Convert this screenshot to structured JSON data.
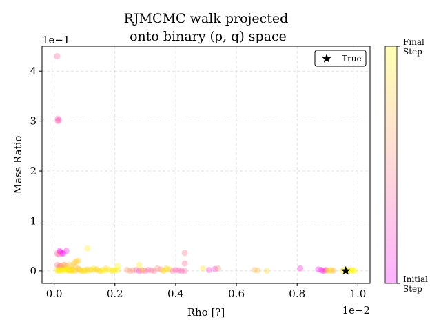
{
  "chart_data": {
    "type": "scatter",
    "title_line1": "RJMCMC walk projected",
    "title_line2": "onto binary (ρ, q) space",
    "xlabel": "Rho [?]",
    "ylabel": "Mass Ratio",
    "x_offset_label": "1e−2",
    "y_offset_label": "1e−1",
    "xlim": [
      -0.04,
      1.04
    ],
    "ylim": [
      -0.25,
      4.5
    ],
    "x_ticks": [
      0.0,
      0.2,
      0.4,
      0.6,
      0.8,
      1.0
    ],
    "x_tick_labels": [
      "0.0",
      "0.2",
      "0.4",
      "0.6",
      "0.8",
      "1.0"
    ],
    "y_ticks": [
      0,
      1,
      2,
      3,
      4
    ],
    "y_tick_labels": [
      "0",
      "1",
      "2",
      "3",
      "4"
    ],
    "grid": true,
    "legend": {
      "position": "top-right",
      "label": "True",
      "marker": "star"
    },
    "colorbar": {
      "top_label": "Final\nStep",
      "bottom_label": "Initial\nStep",
      "colormap": "spring",
      "alpha": 0.3
    },
    "true_point": {
      "x": 0.96,
      "y": 0.0
    },
    "colors": {
      "start": "#ff00ff",
      "end": "#ffff00",
      "star": "#000000",
      "grid": "#b0b0b0"
    },
    "series": [
      {
        "x": [
          0.01,
          0.012,
          0.012,
          0.015,
          0.018,
          0.02,
          0.025,
          0.01,
          0.015,
          0.03,
          0.04,
          0.035,
          0.02,
          0.01,
          0.015,
          0.025,
          0.03,
          0.02,
          0.05,
          0.01,
          0.012,
          0.015,
          0.02,
          0.025,
          0.03,
          0.035,
          0.04,
          0.045,
          0.05,
          0.055,
          0.06,
          0.065,
          0.07,
          0.075,
          0.08,
          0.085,
          0.09,
          0.1,
          0.11,
          0.12,
          0.13,
          0.14,
          0.15,
          0.16,
          0.17,
          0.18,
          0.19,
          0.2,
          0.21,
          0.1,
          0.12,
          0.14,
          0.06,
          0.07,
          0.08,
          0.05,
          0.04,
          0.03,
          0.09,
          0.11,
          0.13,
          0.15,
          0.17,
          0.19,
          0.21,
          0.06,
          0.07,
          0.08,
          0.1,
          0.05,
          0.06,
          0.02,
          0.04,
          0.065,
          0.045,
          0.16,
          0.2,
          0.24,
          0.25,
          0.26,
          0.27,
          0.28,
          0.29,
          0.3,
          0.31,
          0.32,
          0.33,
          0.34,
          0.35,
          0.36,
          0.37,
          0.38,
          0.39,
          0.4,
          0.41,
          0.42,
          0.43,
          0.43,
          0.43,
          0.28,
          0.29,
          0.36,
          0.37,
          0.49,
          0.51,
          0.53,
          0.54,
          0.66,
          0.67,
          0.7,
          0.81,
          0.87,
          0.88,
          0.885,
          0.89,
          0.895,
          0.9,
          0.905,
          0.91,
          0.915,
          0.92,
          0.95,
          0.955,
          0.96,
          0.965,
          0.97,
          0.975,
          0.98,
          0.985,
          0.99,
          0.11
        ],
        "y": [
          4.3,
          3.05,
          3.0,
          3.02,
          0.4,
          0.38,
          0.35,
          0.35,
          0.33,
          0.35,
          0.4,
          0.12,
          0.1,
          0.12,
          0.08,
          0.06,
          0.05,
          0.1,
          0.12,
          0.02,
          0.0,
          0.01,
          0.03,
          0.0,
          0.02,
          0.05,
          0.0,
          0.03,
          0.01,
          0.0,
          0.02,
          0.15,
          0.18,
          0.2,
          0.2,
          0.02,
          0.0,
          0.01,
          0.0,
          0.02,
          0.05,
          0.03,
          0.0,
          0.02,
          0.01,
          0.03,
          0.0,
          0.02,
          0.1,
          0.0,
          0.02,
          0.03,
          0.1,
          0.08,
          0.05,
          0.02,
          0.1,
          0.12,
          0.0,
          0.03,
          0.02,
          0.0,
          0.05,
          0.01,
          0.02,
          0.02,
          0.0,
          0.03,
          0.02,
          0.05,
          0.0,
          0.01,
          0.03,
          0.01,
          0.02,
          0.0,
          0.01,
          0.02,
          0.0,
          0.01,
          0.02,
          0.0,
          0.01,
          0.0,
          0.02,
          0.01,
          0.0,
          0.05,
          0.03,
          0.0,
          0.05,
          0.03,
          0.0,
          0.02,
          0.01,
          0.0,
          0.15,
          0.36,
          0.0,
          0.12,
          0.02,
          0.01,
          0.03,
          0.05,
          0.02,
          0.04,
          0.05,
          0.02,
          0.01,
          0.0,
          0.05,
          0.03,
          0.02,
          0.0,
          0.01,
          0.02,
          0.0,
          0.01,
          0.02,
          0.0,
          0.01,
          0.0,
          0.02,
          0.01,
          0.0,
          0.01,
          0.0,
          0.02,
          0.01,
          0.0,
          0.45
        ],
        "t": [
          0.38,
          0.3,
          0.32,
          0.3,
          0.02,
          0.03,
          0.05,
          0.35,
          0.38,
          0.04,
          0.06,
          0.5,
          0.6,
          0.45,
          0.55,
          0.7,
          0.65,
          0.5,
          0.75,
          0.9,
          0.95,
          0.85,
          0.9,
          0.95,
          0.88,
          0.92,
          0.97,
          0.9,
          0.85,
          0.95,
          0.8,
          0.78,
          0.8,
          0.8,
          0.82,
          0.85,
          0.88,
          0.9,
          0.92,
          0.95,
          0.97,
          0.9,
          0.85,
          0.88,
          0.9,
          0.95,
          0.92,
          0.88,
          0.98,
          0.9,
          0.85,
          0.82,
          0.8,
          0.78,
          0.75,
          0.72,
          0.7,
          0.68,
          0.85,
          0.8,
          0.82,
          0.86,
          0.88,
          0.9,
          0.92,
          0.7,
          0.75,
          0.8,
          0.85,
          0.95,
          0.97,
          0.98,
          0.99,
          0.9,
          0.93,
          0.96,
          0.98,
          0.6,
          0.55,
          0.5,
          0.45,
          0.15,
          0.2,
          0.35,
          0.38,
          0.4,
          0.45,
          0.55,
          0.5,
          0.8,
          0.85,
          0.82,
          0.4,
          0.35,
          0.3,
          0.3,
          0.42,
          0.45,
          0.4,
          0.95,
          0.92,
          0.9,
          0.88,
          0.9,
          0.2,
          0.12,
          0.6,
          0.7,
          0.75,
          0.85,
          0.1,
          0.05,
          0.1,
          0.15,
          0.2,
          0.25,
          0.8,
          0.85,
          0.9,
          0.8,
          0.7,
          0.9,
          0.95,
          0.98,
          0.99,
          1.0,
          0.96,
          0.97,
          0.99,
          1.0,
          0.95
        ]
      }
    ]
  }
}
